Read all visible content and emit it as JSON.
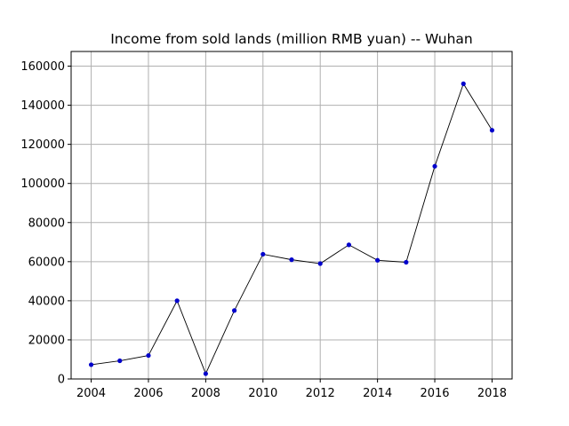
{
  "chart_data": {
    "type": "line",
    "title": "Income from sold lands (million RMB yuan) -- Wuhan",
    "xlabel": "",
    "ylabel": "",
    "x": [
      2004,
      2005,
      2006,
      2007,
      2008,
      2009,
      2010,
      2011,
      2012,
      2013,
      2014,
      2015,
      2016,
      2017,
      2018
    ],
    "series": [
      {
        "values": [
          7300,
          9300,
          12000,
          40000,
          2700,
          35000,
          63800,
          61000,
          59000,
          68600,
          60700,
          59700,
          108800,
          151000,
          127200
        ],
        "line_color": "#000000",
        "marker_color": "#0000cc"
      }
    ],
    "xlim": [
      2003.3,
      2018.7
    ],
    "ylim": [
      0,
      167500
    ],
    "xticks": [
      2004,
      2006,
      2008,
      2010,
      2012,
      2014,
      2016,
      2018
    ],
    "yticks": [
      0,
      20000,
      40000,
      60000,
      80000,
      100000,
      120000,
      140000,
      160000
    ],
    "grid": true,
    "legend": "none"
  }
}
